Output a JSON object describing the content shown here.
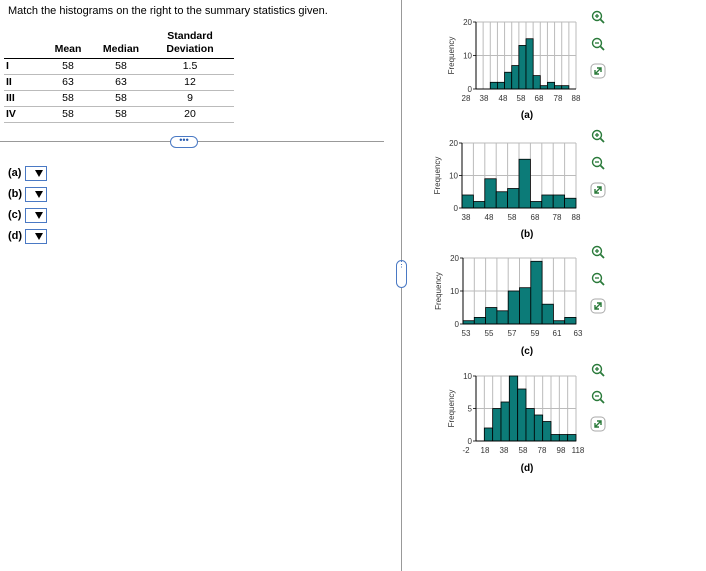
{
  "instruction": "Match the histograms on the right to the summary statistics given.",
  "table": {
    "headers": [
      "",
      "Mean",
      "Median",
      "Standard Deviation"
    ],
    "rows": [
      {
        "id": "I",
        "mean": "58",
        "median": "58",
        "sd": "1.5"
      },
      {
        "id": "II",
        "mean": "63",
        "median": "63",
        "sd": "12"
      },
      {
        "id": "III",
        "mean": "58",
        "median": "58",
        "sd": "9"
      },
      {
        "id": "IV",
        "mean": "58",
        "median": "58",
        "sd": "20"
      }
    ]
  },
  "expand_button_label": "•••",
  "matches": [
    {
      "label": "(a)",
      "selected": ""
    },
    {
      "label": "(b)",
      "selected": ""
    },
    {
      "label": "(c)",
      "selected": ""
    },
    {
      "label": "(d)",
      "selected": ""
    }
  ],
  "colors": {
    "bar": "#0c7b78",
    "grid": "#bbb",
    "accent": "#4a79c4"
  },
  "chart_data": [
    {
      "type": "bar",
      "name": "(a)",
      "xlabel": "",
      "ylabel": "Frequency",
      "ticks": [
        "28",
        "38",
        "48",
        "58",
        "68",
        "78",
        "88"
      ],
      "yticks": [
        "0",
        "10",
        "20"
      ],
      "ylim": [
        0,
        20
      ],
      "values": [
        0,
        0,
        2,
        2,
        5,
        7,
        13,
        15,
        4,
        1,
        2,
        1,
        1,
        0
      ],
      "caption": "(a)"
    },
    {
      "type": "bar",
      "name": "(b)",
      "xlabel": "",
      "ylabel": "Frequency",
      "ticks": [
        "38",
        "48",
        "58",
        "68",
        "78",
        "88"
      ],
      "yticks": [
        "0",
        "10",
        "20"
      ],
      "ylim": [
        0,
        20
      ],
      "values": [
        4,
        2,
        9,
        5,
        6,
        15,
        2,
        4,
        4,
        3
      ],
      "caption": "(b)"
    },
    {
      "type": "bar",
      "name": "(c)",
      "xlabel": "",
      "ylabel": "Frequency",
      "ticks": [
        "53",
        "55",
        "57",
        "59",
        "61",
        "63"
      ],
      "yticks": [
        "0",
        "10",
        "20"
      ],
      "ylim": [
        0,
        20
      ],
      "values": [
        1,
        2,
        5,
        4,
        10,
        11,
        19,
        6,
        1,
        2
      ],
      "caption": "(c)"
    },
    {
      "type": "bar",
      "name": "(d)",
      "xlabel": "",
      "ylabel": "Frequency",
      "ticks": [
        "-2",
        "18",
        "38",
        "58",
        "78",
        "98",
        "118"
      ],
      "yticks": [
        "0",
        "5",
        "10"
      ],
      "ylim": [
        0,
        10
      ],
      "values": [
        0,
        2,
        5,
        6,
        10,
        8,
        5,
        4,
        3,
        1,
        1,
        1
      ],
      "caption": "(d)"
    }
  ]
}
